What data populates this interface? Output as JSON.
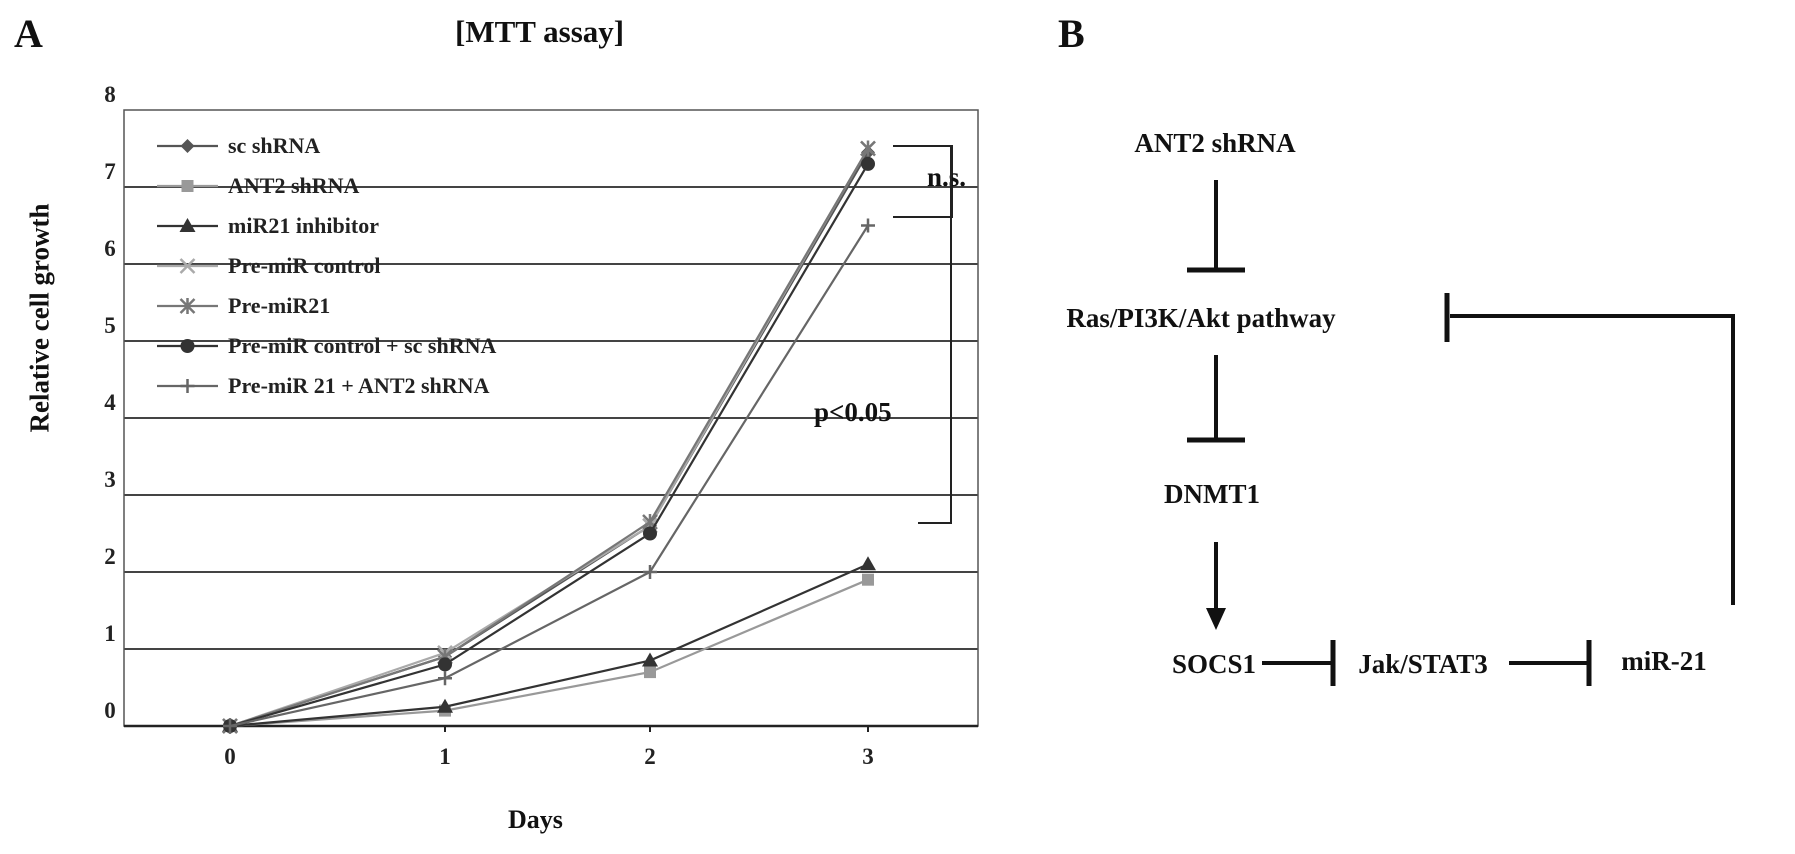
{
  "panel_labels": {
    "a": "A",
    "b": "B"
  },
  "chart_data": {
    "type": "line",
    "title": "[MTT  assay]",
    "xlabel": "Days",
    "ylabel": "Relative cell  growth",
    "x": [
      0,
      1,
      2,
      3
    ],
    "x_tick_labels": [
      "0",
      "1",
      "2",
      "3"
    ],
    "y_tick_labels": [
      "0",
      "1",
      "2",
      "3",
      "4",
      "5",
      "6",
      "7",
      "8"
    ],
    "ylim": [
      0,
      8
    ],
    "grid": "horizontal",
    "legend_position": "top-left",
    "series": [
      {
        "name": "sc shRNA",
        "values": [
          0,
          0.9,
          2.6,
          7.45
        ],
        "color": "#555555",
        "marker": "diamond"
      },
      {
        "name": "ANT2 shRNA",
        "values": [
          0,
          0.2,
          0.7,
          1.9
        ],
        "color": "#999999",
        "marker": "square"
      },
      {
        "name": "miR21 inhibitor",
        "values": [
          0,
          0.25,
          0.85,
          2.1
        ],
        "color": "#333333",
        "marker": "triangle"
      },
      {
        "name": "Pre-miR  control",
        "values": [
          0,
          0.95,
          2.6,
          7.5
        ],
        "color": "#aaaaaa",
        "marker": "x"
      },
      {
        "name": "Pre-miR21",
        "values": [
          0,
          0.9,
          2.65,
          7.5
        ],
        "color": "#777777",
        "marker": "star"
      },
      {
        "name": "Pre-miR  control + sc shRNA",
        "values": [
          0,
          0.8,
          2.5,
          7.3
        ],
        "color": "#333333",
        "marker": "circle"
      },
      {
        "name": "Pre-miR  21 + ANT2 shRNA",
        "values": [
          0,
          0.62,
          2.0,
          6.5
        ],
        "color": "#666666",
        "marker": "plus"
      }
    ],
    "annotations": {
      "ns": "n.s.",
      "p": "p<0.05"
    }
  },
  "diagram": {
    "nodes": {
      "ant2": "ANT2 shRNA",
      "ras": "Ras/PI3K/Akt pathway",
      "dnmt1": "DNMT1",
      "socs1": "SOCS1",
      "jak": "Jak/STAT3",
      "mir21": "miR-21"
    }
  }
}
